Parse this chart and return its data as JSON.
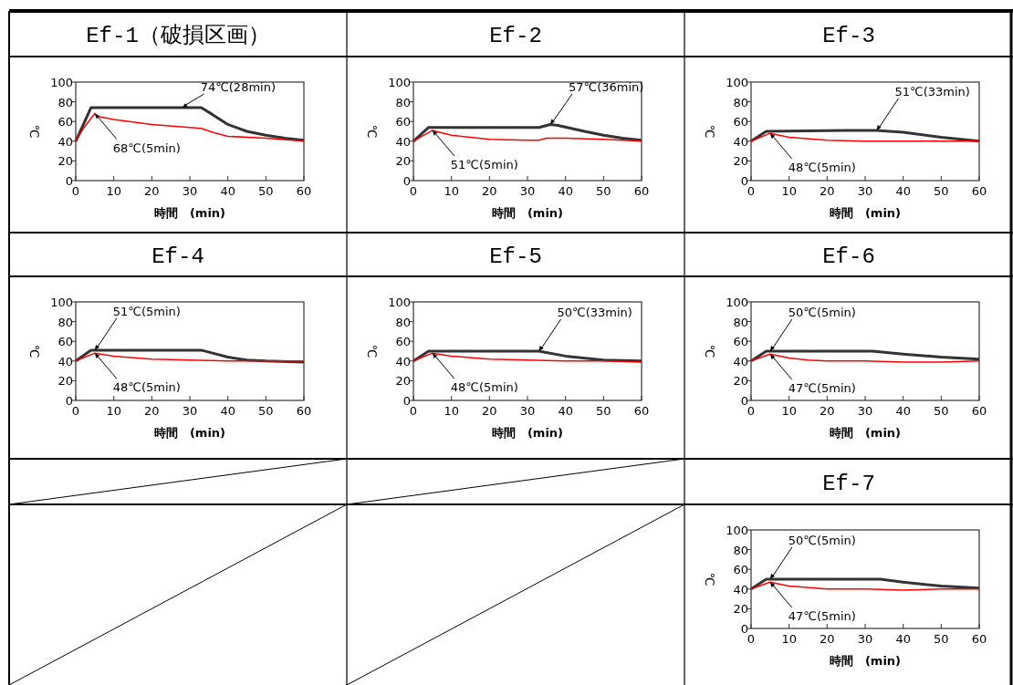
{
  "chart_data": [
    {
      "type": "line",
      "title": "Ef-1（破損区画）",
      "xlabel": "時間　(min)",
      "ylabel": "℃",
      "xlim": [
        0,
        60
      ],
      "ylim": [
        0,
        100
      ],
      "xticks": [
        0,
        10,
        20,
        30,
        40,
        50,
        60
      ],
      "yticks": [
        0,
        20,
        40,
        60,
        80,
        100
      ],
      "series": [
        {
          "color": "#333333",
          "x": [
            0,
            4,
            33,
            36,
            40,
            45,
            50,
            55,
            60
          ],
          "values": [
            40,
            74,
            74,
            67,
            57,
            50,
            46,
            43,
            41
          ]
        },
        {
          "color": "#ff0000",
          "x": [
            0,
            2,
            5,
            6,
            10,
            20,
            30,
            33,
            36,
            40,
            50,
            60
          ],
          "values": [
            40,
            53,
            68,
            65,
            62,
            57,
            54,
            53,
            49,
            45,
            43,
            40
          ]
        }
      ],
      "annotations": [
        {
          "text": "68℃(5min)",
          "x": 5,
          "y": 68
        },
        {
          "text": "74℃(28min)",
          "x": 28,
          "y": 74
        }
      ]
    },
    {
      "type": "line",
      "title": "Ef-2",
      "xlabel": "時間　(min)",
      "ylabel": "℃",
      "xlim": [
        0,
        60
      ],
      "ylim": [
        0,
        100
      ],
      "xticks": [
        0,
        10,
        20,
        30,
        40,
        50,
        60
      ],
      "yticks": [
        0,
        20,
        40,
        60,
        80,
        100
      ],
      "series": [
        {
          "color": "#333333",
          "x": [
            0,
            4,
            10,
            33,
            36,
            38,
            45,
            50,
            55,
            60
          ],
          "values": [
            40,
            54,
            54,
            54,
            57,
            56,
            50,
            46,
            43,
            41
          ]
        },
        {
          "color": "#ff0000",
          "x": [
            0,
            5,
            10,
            20,
            30,
            33,
            35,
            40,
            50,
            60
          ],
          "values": [
            40,
            51,
            46,
            42,
            41,
            41,
            43,
            43,
            42,
            40
          ]
        }
      ],
      "annotations": [
        {
          "text": "57℃(36min)",
          "x": 36,
          "y": 57
        },
        {
          "text": "51℃(5min)",
          "x": 5,
          "y": 51
        }
      ]
    },
    {
      "type": "line",
      "title": "Ef-3",
      "xlabel": "時間　(min)",
      "ylabel": "℃",
      "xlim": [
        0,
        60
      ],
      "ylim": [
        0,
        100
      ],
      "xticks": [
        0,
        10,
        20,
        30,
        40,
        50,
        60
      ],
      "yticks": [
        0,
        20,
        40,
        60,
        80,
        100
      ],
      "series": [
        {
          "color": "#333333",
          "x": [
            0,
            4,
            25,
            33,
            40,
            50,
            60
          ],
          "values": [
            40,
            50,
            51,
            51,
            49,
            44,
            40
          ]
        },
        {
          "color": "#ff0000",
          "x": [
            0,
            5,
            10,
            20,
            30,
            40,
            50,
            60
          ],
          "values": [
            40,
            48,
            44,
            41,
            40,
            40,
            40,
            40
          ]
        }
      ],
      "annotations": [
        {
          "text": "51℃(33min)",
          "x": 33,
          "y": 51
        },
        {
          "text": "48℃(5min)",
          "x": 5,
          "y": 48
        }
      ]
    },
    {
      "type": "line",
      "title": "Ef-4",
      "xlabel": "時間　(min)",
      "ylabel": "℃",
      "xlim": [
        0,
        60
      ],
      "ylim": [
        0,
        100
      ],
      "xticks": [
        0,
        10,
        20,
        30,
        40,
        50,
        60
      ],
      "yticks": [
        0,
        20,
        40,
        60,
        80,
        100
      ],
      "series": [
        {
          "color": "#333333",
          "x": [
            0,
            4,
            33,
            36,
            40,
            45,
            50,
            60
          ],
          "values": [
            40,
            51,
            51,
            48,
            44,
            41,
            40,
            39
          ]
        },
        {
          "color": "#ff0000",
          "x": [
            0,
            5,
            10,
            20,
            30,
            40,
            50,
            60
          ],
          "values": [
            40,
            48,
            45,
            42,
            41,
            40,
            40,
            40
          ]
        }
      ],
      "annotations": [
        {
          "text": "51℃(5min)",
          "x": 5,
          "y": 51
        },
        {
          "text": "48℃(5min)",
          "x": 5,
          "y": 48
        }
      ]
    },
    {
      "type": "line",
      "title": "Ef-5",
      "xlabel": "時間　(min)",
      "ylabel": "℃",
      "xlim": [
        0,
        60
      ],
      "ylim": [
        0,
        100
      ],
      "xticks": [
        0,
        10,
        20,
        30,
        40,
        50,
        60
      ],
      "yticks": [
        0,
        20,
        40,
        60,
        80,
        100
      ],
      "series": [
        {
          "color": "#333333",
          "x": [
            0,
            4,
            33,
            40,
            50,
            60
          ],
          "values": [
            40,
            50,
            50,
            45,
            41,
            40
          ]
        },
        {
          "color": "#ff0000",
          "x": [
            0,
            5,
            10,
            20,
            30,
            40,
            50,
            60
          ],
          "values": [
            40,
            48,
            45,
            42,
            41,
            40,
            40,
            39
          ]
        }
      ],
      "annotations": [
        {
          "text": "50℃(33min)",
          "x": 33,
          "y": 50
        },
        {
          "text": "48℃(5min)",
          "x": 5,
          "y": 48
        }
      ]
    },
    {
      "type": "line",
      "title": "Ef-6",
      "xlabel": "時間　(min)",
      "ylabel": "℃",
      "xlim": [
        0,
        60
      ],
      "ylim": [
        0,
        100
      ],
      "xticks": [
        0,
        10,
        20,
        30,
        40,
        50,
        60
      ],
      "yticks": [
        0,
        20,
        40,
        60,
        80,
        100
      ],
      "series": [
        {
          "color": "#333333",
          "x": [
            0,
            4,
            32,
            40,
            50,
            60
          ],
          "values": [
            40,
            50,
            50,
            47,
            44,
            42
          ]
        },
        {
          "color": "#ff0000",
          "x": [
            0,
            5,
            10,
            15,
            20,
            30,
            40,
            50,
            60
          ],
          "values": [
            40,
            47,
            43,
            41,
            40,
            40,
            39,
            39,
            40
          ]
        }
      ],
      "annotations": [
        {
          "text": "50℃(5min)",
          "x": 5,
          "y": 50
        },
        {
          "text": "47℃(5min)",
          "x": 5,
          "y": 47
        }
      ]
    },
    {
      "type": "line",
      "title": "Ef-7",
      "xlabel": "時間　(min)",
      "ylabel": "℃",
      "xlim": [
        0,
        60
      ],
      "ylim": [
        0,
        100
      ],
      "xticks": [
        0,
        10,
        20,
        30,
        40,
        50,
        60
      ],
      "yticks": [
        0,
        20,
        40,
        60,
        80,
        100
      ],
      "series": [
        {
          "color": "#333333",
          "x": [
            0,
            4,
            34,
            40,
            50,
            60
          ],
          "values": [
            40,
            50,
            50,
            47,
            43,
            41
          ]
        },
        {
          "color": "#ff0000",
          "x": [
            0,
            5,
            10,
            20,
            30,
            40,
            50,
            60
          ],
          "values": [
            40,
            47,
            43,
            40,
            40,
            39,
            40,
            40
          ]
        }
      ],
      "annotations": [
        {
          "text": "50℃(5min)",
          "x": 5,
          "y": 50
        },
        {
          "text": "47℃(5min)",
          "x": 5,
          "y": 47
        }
      ]
    }
  ]
}
